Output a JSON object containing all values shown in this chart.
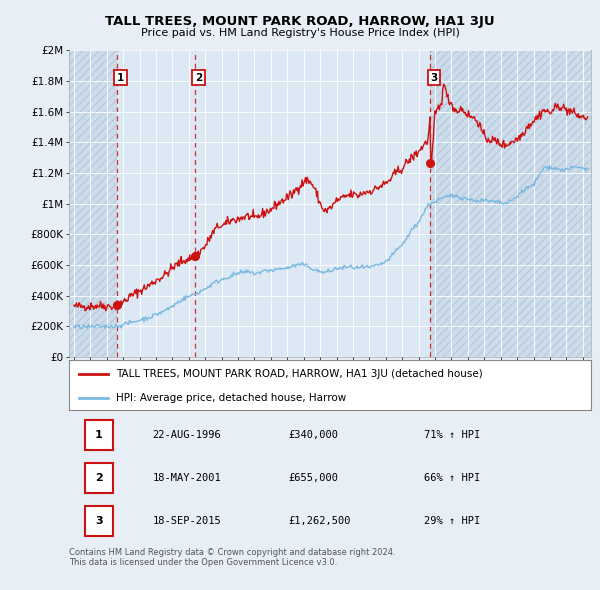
{
  "title": "TALL TREES, MOUNT PARK ROAD, HARROW, HA1 3JU",
  "subtitle": "Price paid vs. HM Land Registry's House Price Index (HPI)",
  "xlim": [
    1993.7,
    2025.5
  ],
  "ylim": [
    0,
    2000000
  ],
  "yticks": [
    0,
    200000,
    400000,
    600000,
    800000,
    1000000,
    1200000,
    1400000,
    1600000,
    1800000,
    2000000
  ],
  "ytick_labels": [
    "£0",
    "£200K",
    "£400K",
    "£600K",
    "£800K",
    "£1M",
    "£1.2M",
    "£1.4M",
    "£1.6M",
    "£1.8M",
    "£2M"
  ],
  "sale_dates": [
    1996.64,
    2001.38,
    2015.72
  ],
  "sale_prices": [
    340000,
    655000,
    1262500
  ],
  "sale_labels": [
    "1",
    "2",
    "3"
  ],
  "hpi_color": "#7ab8e0",
  "price_color": "#cc1111",
  "bg_color": "#e8eef5",
  "plot_bg": "#dce8f4",
  "hatch_color": "#c8d8e8",
  "legend_line1": "TALL TREES, MOUNT PARK ROAD, HARROW, HA1 3JU (detached house)",
  "legend_line2": "HPI: Average price, detached house, Harrow",
  "table_entries": [
    {
      "num": "1",
      "date": "22-AUG-1996",
      "price": "£340,000",
      "change": "71% ↑ HPI"
    },
    {
      "num": "2",
      "date": "18-MAY-2001",
      "price": "£655,000",
      "change": "66% ↑ HPI"
    },
    {
      "num": "3",
      "date": "18-SEP-2015",
      "price": "£1,262,500",
      "change": "29% ↑ HPI"
    }
  ],
  "footnote": "Contains HM Land Registry data © Crown copyright and database right 2024.\nThis data is licensed under the Open Government Licence v3.0.",
  "dashed_vlines": [
    1996.64,
    2001.38,
    2015.72
  ],
  "red_series": [
    [
      1994.0,
      330000
    ],
    [
      1994.5,
      330000
    ],
    [
      1995.0,
      330000
    ],
    [
      1995.5,
      335000
    ],
    [
      1996.0,
      332000
    ],
    [
      1996.5,
      330000
    ],
    [
      1996.64,
      340000
    ],
    [
      1996.8,
      345000
    ],
    [
      1997.0,
      360000
    ],
    [
      1997.5,
      400000
    ],
    [
      1998.0,
      430000
    ],
    [
      1998.5,
      460000
    ],
    [
      1999.0,
      500000
    ],
    [
      1999.5,
      530000
    ],
    [
      2000.0,
      580000
    ],
    [
      2000.5,
      620000
    ],
    [
      2001.0,
      640000
    ],
    [
      2001.38,
      655000
    ],
    [
      2001.5,
      670000
    ],
    [
      2002.0,
      720000
    ],
    [
      2002.3,
      780000
    ],
    [
      2002.6,
      830000
    ],
    [
      2002.9,
      860000
    ],
    [
      2003.0,
      850000
    ],
    [
      2003.3,
      870000
    ],
    [
      2003.6,
      890000
    ],
    [
      2004.0,
      900000
    ],
    [
      2004.3,
      910000
    ],
    [
      2004.6,
      920000
    ],
    [
      2005.0,
      900000
    ],
    [
      2005.3,
      920000
    ],
    [
      2005.6,
      940000
    ],
    [
      2006.0,
      960000
    ],
    [
      2006.3,
      990000
    ],
    [
      2006.6,
      1010000
    ],
    [
      2007.0,
      1040000
    ],
    [
      2007.3,
      1060000
    ],
    [
      2007.6,
      1100000
    ],
    [
      2008.0,
      1140000
    ],
    [
      2008.2,
      1155000
    ],
    [
      2008.5,
      1130000
    ],
    [
      2008.8,
      1060000
    ],
    [
      2009.0,
      1000000
    ],
    [
      2009.2,
      960000
    ],
    [
      2009.4,
      950000
    ],
    [
      2009.6,
      970000
    ],
    [
      2009.8,
      990000
    ],
    [
      2010.0,
      1020000
    ],
    [
      2010.3,
      1030000
    ],
    [
      2010.6,
      1050000
    ],
    [
      2011.0,
      1060000
    ],
    [
      2011.3,
      1050000
    ],
    [
      2011.6,
      1070000
    ],
    [
      2012.0,
      1080000
    ],
    [
      2012.3,
      1090000
    ],
    [
      2012.6,
      1110000
    ],
    [
      2013.0,
      1130000
    ],
    [
      2013.3,
      1160000
    ],
    [
      2013.6,
      1200000
    ],
    [
      2014.0,
      1230000
    ],
    [
      2014.3,
      1270000
    ],
    [
      2014.6,
      1300000
    ],
    [
      2015.0,
      1340000
    ],
    [
      2015.3,
      1380000
    ],
    [
      2015.6,
      1420000
    ],
    [
      2015.7,
      1600000
    ],
    [
      2015.72,
      1262500
    ],
    [
      2015.8,
      1280000
    ],
    [
      2016.0,
      1580000
    ],
    [
      2016.2,
      1620000
    ],
    [
      2016.4,
      1640000
    ],
    [
      2016.5,
      1820000
    ],
    [
      2016.7,
      1700000
    ],
    [
      2017.0,
      1650000
    ],
    [
      2017.3,
      1600000
    ],
    [
      2017.6,
      1620000
    ],
    [
      2018.0,
      1580000
    ],
    [
      2018.3,
      1560000
    ],
    [
      2018.6,
      1540000
    ],
    [
      2019.0,
      1430000
    ],
    [
      2019.3,
      1420000
    ],
    [
      2019.6,
      1410000
    ],
    [
      2020.0,
      1390000
    ],
    [
      2020.3,
      1380000
    ],
    [
      2020.6,
      1400000
    ],
    [
      2021.0,
      1420000
    ],
    [
      2021.3,
      1450000
    ],
    [
      2021.6,
      1500000
    ],
    [
      2022.0,
      1540000
    ],
    [
      2022.3,
      1570000
    ],
    [
      2022.6,
      1610000
    ],
    [
      2023.0,
      1590000
    ],
    [
      2023.3,
      1620000
    ],
    [
      2023.6,
      1640000
    ],
    [
      2024.0,
      1610000
    ],
    [
      2024.3,
      1600000
    ],
    [
      2024.6,
      1580000
    ],
    [
      2025.0,
      1560000
    ],
    [
      2025.3,
      1560000
    ]
  ],
  "blue_series": [
    [
      1994.0,
      195000
    ],
    [
      1994.5,
      196000
    ],
    [
      1995.0,
      196000
    ],
    [
      1995.5,
      198000
    ],
    [
      1996.0,
      200000
    ],
    [
      1996.5,
      200000
    ],
    [
      1997.0,
      210000
    ],
    [
      1997.5,
      225000
    ],
    [
      1998.0,
      240000
    ],
    [
      1998.5,
      255000
    ],
    [
      1999.0,
      275000
    ],
    [
      1999.5,
      300000
    ],
    [
      2000.0,
      330000
    ],
    [
      2000.5,
      370000
    ],
    [
      2001.0,
      395000
    ],
    [
      2001.5,
      415000
    ],
    [
      2002.0,
      445000
    ],
    [
      2002.5,
      480000
    ],
    [
      2003.0,
      505000
    ],
    [
      2003.5,
      525000
    ],
    [
      2004.0,
      545000
    ],
    [
      2004.5,
      555000
    ],
    [
      2005.0,
      545000
    ],
    [
      2005.3,
      550000
    ],
    [
      2005.6,
      560000
    ],
    [
      2006.0,
      565000
    ],
    [
      2006.3,
      570000
    ],
    [
      2006.6,
      575000
    ],
    [
      2007.0,
      580000
    ],
    [
      2007.3,
      590000
    ],
    [
      2007.6,
      600000
    ],
    [
      2008.0,
      600000
    ],
    [
      2008.3,
      590000
    ],
    [
      2008.6,
      570000
    ],
    [
      2009.0,
      555000
    ],
    [
      2009.3,
      550000
    ],
    [
      2009.6,
      560000
    ],
    [
      2010.0,
      575000
    ],
    [
      2010.3,
      580000
    ],
    [
      2010.6,
      585000
    ],
    [
      2011.0,
      585000
    ],
    [
      2011.3,
      580000
    ],
    [
      2011.6,
      583000
    ],
    [
      2012.0,
      583000
    ],
    [
      2012.3,
      590000
    ],
    [
      2012.6,
      600000
    ],
    [
      2013.0,
      620000
    ],
    [
      2013.3,
      650000
    ],
    [
      2013.6,
      690000
    ],
    [
      2014.0,
      730000
    ],
    [
      2014.3,
      780000
    ],
    [
      2014.6,
      830000
    ],
    [
      2015.0,
      880000
    ],
    [
      2015.3,
      940000
    ],
    [
      2015.6,
      990000
    ],
    [
      2015.72,
      1000000
    ],
    [
      2016.0,
      1010000
    ],
    [
      2016.3,
      1030000
    ],
    [
      2016.6,
      1040000
    ],
    [
      2017.0,
      1050000
    ],
    [
      2017.3,
      1050000
    ],
    [
      2017.6,
      1040000
    ],
    [
      2018.0,
      1030000
    ],
    [
      2018.3,
      1020000
    ],
    [
      2018.6,
      1020000
    ],
    [
      2019.0,
      1020000
    ],
    [
      2019.3,
      1015000
    ],
    [
      2019.6,
      1010000
    ],
    [
      2020.0,
      1005000
    ],
    [
      2020.3,
      1000000
    ],
    [
      2020.6,
      1010000
    ],
    [
      2021.0,
      1050000
    ],
    [
      2021.3,
      1080000
    ],
    [
      2021.6,
      1100000
    ],
    [
      2022.0,
      1120000
    ],
    [
      2022.3,
      1180000
    ],
    [
      2022.6,
      1230000
    ],
    [
      2023.0,
      1240000
    ],
    [
      2023.3,
      1230000
    ],
    [
      2023.6,
      1220000
    ],
    [
      2024.0,
      1220000
    ],
    [
      2024.3,
      1230000
    ],
    [
      2024.6,
      1240000
    ],
    [
      2025.0,
      1230000
    ],
    [
      2025.3,
      1225000
    ]
  ]
}
